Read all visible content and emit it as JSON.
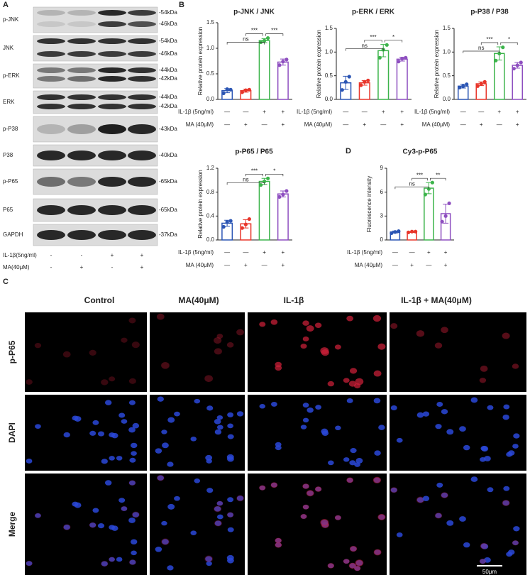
{
  "panel_a": {
    "letter": "A",
    "blots": [
      {
        "label": "p-JNK",
        "markers": [
          "-54kDa",
          "-46kDa"
        ]
      },
      {
        "label": "JNK",
        "markers": [
          "-54kDa",
          "-46kDa"
        ]
      },
      {
        "label": "p-ERK",
        "markers": [
          "-44kDa",
          "-42kDa"
        ]
      },
      {
        "label": "ERK",
        "markers": [
          "-44kDa",
          "-42kDa"
        ]
      },
      {
        "label": "p-P38",
        "markers": [
          "-43kDa"
        ]
      },
      {
        "label": "P38",
        "markers": [
          "-40kDa"
        ]
      },
      {
        "label": "p-P65",
        "markers": [
          "-65kDa"
        ]
      },
      {
        "label": "P65",
        "markers": [
          "-65kDa"
        ]
      },
      {
        "label": "GAPDH",
        "markers": [
          "-37kDa"
        ]
      }
    ],
    "conditions": [
      {
        "label": "IL-1β(5ng/ml)",
        "marks": [
          "-",
          "-",
          "+",
          "+"
        ]
      },
      {
        "label": "MA(40μM)",
        "marks": [
          "-",
          "+",
          "-",
          "+"
        ]
      }
    ]
  },
  "panel_b_letter": "B",
  "panel_d_letter": "D",
  "chart_data": [
    {
      "type": "bar",
      "title": "p-JNK / JNK",
      "y_label": "Relative protein expression",
      "colors": [
        "#2b55b4",
        "#e8352a",
        "#3cb44b",
        "#8e4fc0"
      ],
      "values": [
        0.17,
        0.17,
        1.15,
        0.73
      ],
      "errors": [
        0.04,
        0.03,
        0.04,
        0.06
      ],
      "points": [
        [
          0.12,
          0.2,
          0.19
        ],
        [
          0.14,
          0.18,
          0.19
        ],
        [
          1.12,
          1.15,
          1.2
        ],
        [
          0.67,
          0.74,
          0.78
        ]
      ],
      "ylim": [
        0,
        1.5
      ],
      "yticks": [
        {
          "value": 0,
          "label": "0.0"
        },
        0.5,
        {
          "value": 1,
          "label": "1.0"
        },
        1.5
      ],
      "annotations": [
        "ns",
        "***",
        "***"
      ],
      "conditions": [
        {
          "label": "IL-1β (5ng/ml)",
          "marks": [
            "—",
            "—",
            "+",
            "+"
          ]
        },
        {
          "label": "MA (40μM)",
          "marks": [
            "—",
            "+",
            "—",
            "+"
          ]
        }
      ]
    },
    {
      "type": "bar",
      "title": "p-ERK / ERK",
      "y_label": "Relative protein expression",
      "colors": [
        "#2b55b4",
        "#e8352a",
        "#3cb44b",
        "#8e4fc0"
      ],
      "values": [
        0.35,
        0.35,
        1.03,
        0.85
      ],
      "errors": [
        0.14,
        0.05,
        0.13,
        0.04
      ],
      "points": [
        [
          0.2,
          0.37,
          0.48
        ],
        [
          0.3,
          0.37,
          0.4
        ],
        [
          0.88,
          1.05,
          1.15
        ],
        [
          0.8,
          0.86,
          0.88
        ]
      ],
      "ylim": [
        0,
        1.5
      ],
      "yticks": [
        {
          "value": 0,
          "label": "0.0"
        },
        0.5,
        {
          "value": 1,
          "label": "1.0"
        },
        1.5
      ],
      "annotations": [
        "ns",
        "***",
        "*"
      ],
      "conditions": [
        {
          "label": "IL-1β (5ng/ml)",
          "marks": [
            "—",
            "—",
            "+",
            "+"
          ]
        },
        {
          "label": "MA (40μM)",
          "marks": [
            "—",
            "+",
            "—",
            "+"
          ]
        }
      ]
    },
    {
      "type": "bar",
      "title": "p-P38 / P38",
      "y_label": "Relative protein expression",
      "colors": [
        "#2b55b4",
        "#e8352a",
        "#3cb44b",
        "#8e4fc0"
      ],
      "values": [
        0.28,
        0.33,
        0.97,
        0.72
      ],
      "errors": [
        0.04,
        0.04,
        0.14,
        0.06
      ],
      "points": [
        [
          0.25,
          0.28,
          0.32
        ],
        [
          0.28,
          0.33,
          0.37
        ],
        [
          0.82,
          0.97,
          1.1
        ],
        [
          0.65,
          0.72,
          0.78
        ]
      ],
      "ylim": [
        0,
        1.5
      ],
      "yticks": [
        {
          "value": 0,
          "label": "0.0"
        },
        0.5,
        {
          "value": 1,
          "label": "1.0"
        },
        1.5
      ],
      "annotations": [
        "ns",
        "***",
        "*"
      ],
      "conditions": [
        {
          "label": "IL-1β (5ng/ml)",
          "marks": [
            "—",
            "—",
            "+",
            "+"
          ]
        },
        {
          "label": "MA (40μM)",
          "marks": [
            "—",
            "+",
            "—",
            "+"
          ]
        }
      ]
    },
    {
      "type": "bar",
      "title": "p-P65 / P65",
      "y_label": "Relative protein expression",
      "colors": [
        "#2b55b4",
        "#e8352a",
        "#3cb44b",
        "#8e4fc0"
      ],
      "values": [
        0.28,
        0.27,
        0.98,
        0.77
      ],
      "errors": [
        0.05,
        0.07,
        0.05,
        0.05
      ],
      "points": [
        [
          0.22,
          0.3,
          0.32
        ],
        [
          0.2,
          0.26,
          0.35
        ],
        [
          0.92,
          0.98,
          1.03
        ],
        [
          0.72,
          0.76,
          0.82
        ]
      ],
      "ylim": [
        0,
        1.2
      ],
      "yticks": [
        {
          "value": 0,
          "label": "0.0"
        },
        0.4,
        0.8,
        1.2
      ],
      "annotations": [
        "ns",
        "***",
        "*"
      ],
      "conditions": [
        {
          "label": "IL-1β (5ng/ml)",
          "marks": [
            "—",
            "—",
            "+",
            "+"
          ]
        },
        {
          "label": "MA (40μM)",
          "marks": [
            "—",
            "+",
            "—",
            "+"
          ]
        }
      ]
    },
    {
      "type": "bar",
      "title": "Cy3-p-P65",
      "y_label": "Fluorescence intensity",
      "colors": [
        "#2b55b4",
        "#e8352a",
        "#3cb44b",
        "#8e4fc0"
      ],
      "values": [
        1.0,
        1.0,
        6.5,
        3.3
      ],
      "errors": [
        0.12,
        0.06,
        0.7,
        1.2
      ],
      "points": [
        [
          0.85,
          1.0,
          1.1
        ],
        [
          0.95,
          1.05,
          1.05
        ],
        [
          5.7,
          6.4,
          7.2
        ],
        [
          2.3,
          3.0,
          4.6
        ]
      ],
      "ylim": [
        0,
        9
      ],
      "yticks": [
        0,
        3,
        6,
        9
      ],
      "annotations": [
        "ns",
        "***",
        "**"
      ],
      "conditions": [
        {
          "label": "IL-1β (5ng/ml)",
          "marks": [
            "—",
            "—",
            "+",
            "+"
          ]
        },
        {
          "label": "MA (40μM)",
          "marks": [
            "—",
            "+",
            "—",
            "+"
          ]
        }
      ]
    }
  ],
  "panel_c": {
    "letter": "C",
    "columns": [
      "Control",
      "MA(40μM)",
      "IL-1β",
      "IL-1β + MA(40μM)"
    ],
    "rows": [
      "p-P65",
      "DAPI",
      "Merge"
    ],
    "scale_bar": "50μm"
  }
}
